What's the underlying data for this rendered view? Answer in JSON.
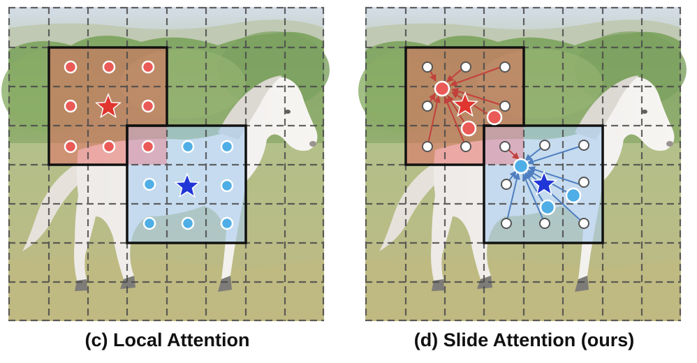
{
  "panels": [
    {
      "id": "local",
      "caption": "(c) Local Attention"
    },
    {
      "id": "slide",
      "caption": "(d) Slide Attention (ours)"
    }
  ],
  "image": {
    "subject": "horse-photo",
    "grid": {
      "rows": 8,
      "cols": 8
    }
  },
  "colors": {
    "red_window": "#e8665f",
    "blue_window": "#a9cdf0",
    "red_key": "#ea5a57",
    "blue_key": "#4faee6",
    "white_key": "#ffffff",
    "red_query_star": "#e0362f",
    "blue_query_star": "#2136d6",
    "red_arrow": "#c2413c",
    "blue_arrow": "#4f7fc0"
  }
}
